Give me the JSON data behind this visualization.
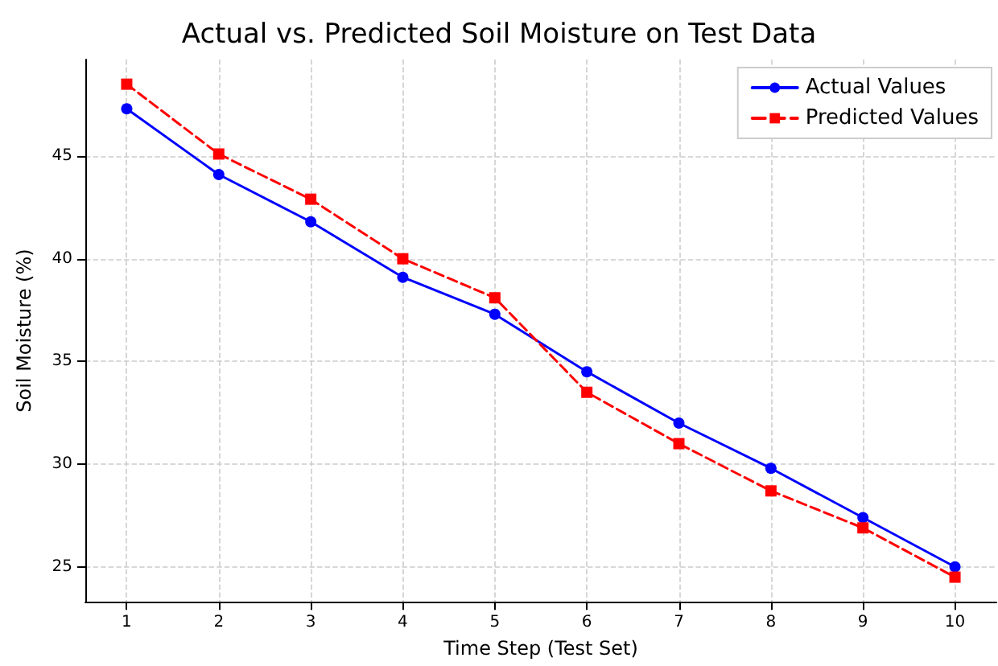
{
  "chart_data": {
    "type": "line",
    "title": "Actual vs. Predicted Soil Moisture on Test Data",
    "xlabel": "Time Step (Test Set)",
    "ylabel": "Soil Moisture (%)",
    "x": [
      1,
      2,
      3,
      4,
      5,
      6,
      7,
      8,
      9,
      10
    ],
    "series": [
      {
        "name": "Actual Values",
        "color": "#0000ff",
        "marker": "circle",
        "line_style": "solid",
        "values": [
          47.3,
          44.1,
          41.8,
          39.1,
          37.3,
          34.5,
          32.0,
          29.8,
          27.4,
          25.0
        ]
      },
      {
        "name": "Predicted Values",
        "color": "#ff0000",
        "marker": "square",
        "line_style": "dashed",
        "values": [
          48.5,
          45.1,
          42.9,
          40.0,
          38.1,
          33.5,
          31.0,
          28.7,
          26.9,
          24.5
        ]
      }
    ],
    "xlim": [
      0.55,
      10.45
    ],
    "xticks": [
      1,
      2,
      3,
      4,
      5,
      6,
      7,
      8,
      9,
      10
    ],
    "ylim": [
      23.3,
      49.7
    ],
    "yticks": [
      25,
      30,
      35,
      40,
      45
    ],
    "grid": true,
    "legend": "top right"
  }
}
